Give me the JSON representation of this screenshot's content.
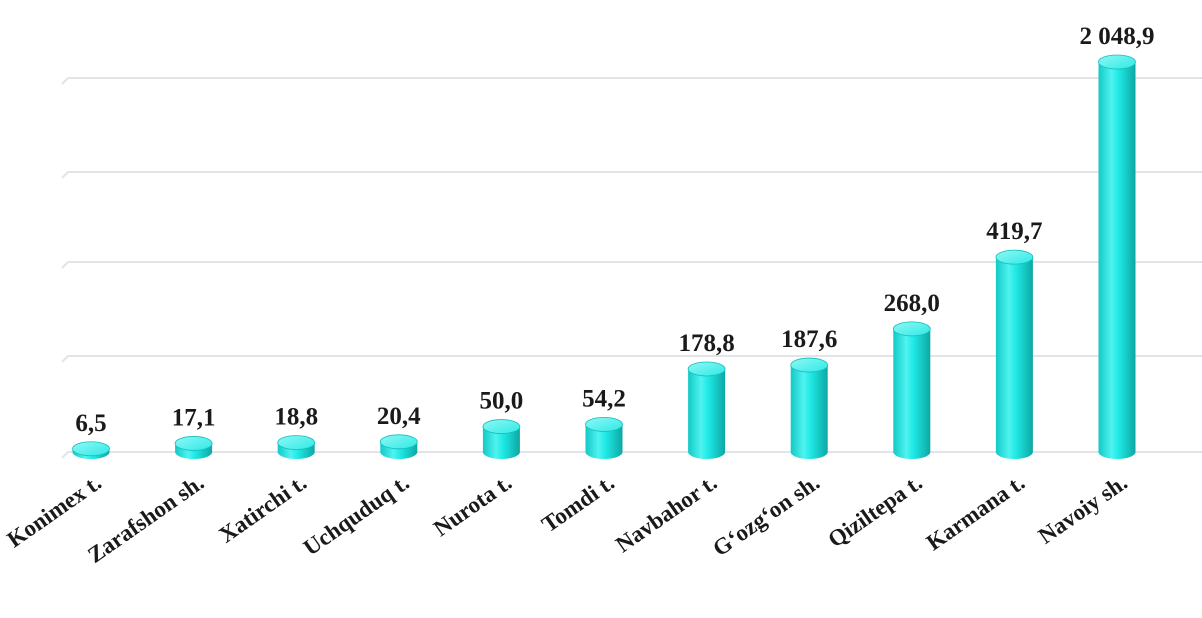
{
  "chart_data": {
    "type": "bar",
    "style": "3d-cylinder",
    "categories": [
      "Konimex t.",
      "Zarafshon sh.",
      "Xatirchi t.",
      "Uchquduq t.",
      "Nurota t.",
      "Tomdi t.",
      "Navbahor t.",
      "G‘ozg‘on sh.",
      "Qiziltepa t.",
      "Karmana t.",
      "Navoiy sh."
    ],
    "values": [
      6.5,
      17.1,
      18.8,
      20.4,
      50.0,
      54.2,
      178.8,
      187.6,
      268.0,
      419.7,
      2048.9
    ],
    "value_labels": [
      "6,5",
      "17,1",
      "18,8",
      "20,4",
      "50,0",
      "54,2",
      "178,8",
      "187,6",
      "268,0",
      "419,7",
      "2 048,9"
    ],
    "title": "",
    "xlabel": "",
    "ylabel": "",
    "ylim": [
      0,
      2000
    ],
    "scale_note": "non-linear axis; tallest bar is visually truncated",
    "grid": true,
    "legend": "none",
    "colors": {
      "bar_main": "#1ee8e4",
      "bar_dark": "#0fb3b0",
      "bar_light": "#9ff8f6",
      "grid": "#e3e3e8",
      "text": "#1a1a1a"
    }
  }
}
